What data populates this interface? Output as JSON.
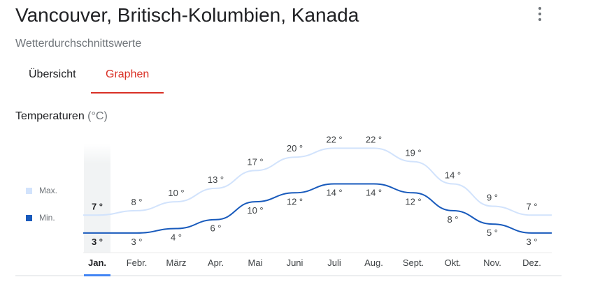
{
  "header": {
    "title": "Vancouver, Britisch-Kolumbien, Kanada",
    "subtitle": "Wetterdurchschnittswerte"
  },
  "tabs": [
    {
      "label": "Übersicht",
      "active": false
    },
    {
      "label": "Graphen",
      "active": true
    }
  ],
  "section": {
    "label": "Temperaturen",
    "unit": "(°C)"
  },
  "legend": {
    "max_label": "Max.",
    "min_label": "Min."
  },
  "colors": {
    "accent": "#d93025",
    "max_line": "#d2e3fc",
    "min_line": "#185abc",
    "selected": "#4285f4"
  },
  "icons": {
    "menu": "more-vert-icon"
  },
  "chart_data": {
    "type": "line",
    "categories": [
      "Jan.",
      "Febr.",
      "März",
      "Apr.",
      "Mai",
      "Juni",
      "Juli",
      "Aug.",
      "Sept.",
      "Okt.",
      "Nov.",
      "Dez."
    ],
    "series": [
      {
        "name": "Max.",
        "values": [
          7,
          8,
          10,
          13,
          17,
          20,
          22,
          22,
          19,
          14,
          9,
          7
        ]
      },
      {
        "name": "Min.",
        "values": [
          3,
          3,
          4,
          6,
          10,
          12,
          14,
          14,
          12,
          8,
          5,
          3
        ]
      }
    ],
    "value_suffix": " °",
    "selected_index": 0,
    "ylim": [
      -1.4,
      23
    ]
  }
}
